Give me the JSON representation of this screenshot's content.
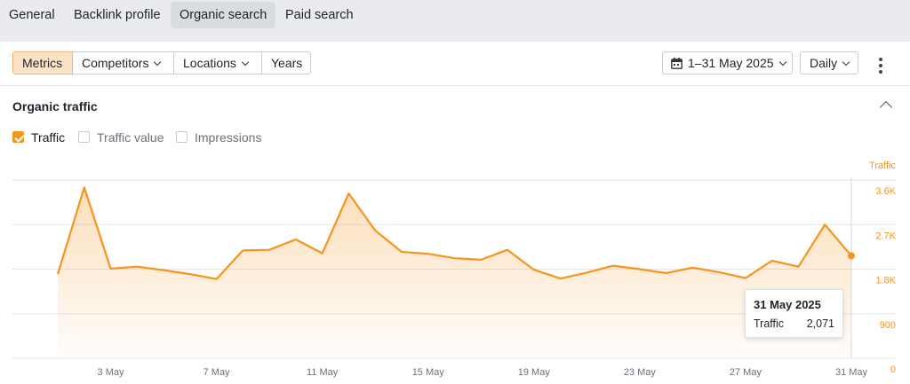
{
  "tabs": [
    {
      "label": "General",
      "active": false
    },
    {
      "label": "Backlink profile",
      "active": false
    },
    {
      "label": "Organic search",
      "active": true
    },
    {
      "label": "Paid search",
      "active": false
    }
  ],
  "toolbar": {
    "segments": [
      {
        "label": "Metrics",
        "active": true,
        "dropdown": false
      },
      {
        "label": "Competitors",
        "active": false,
        "dropdown": true
      },
      {
        "label": "Locations",
        "active": false,
        "dropdown": true
      },
      {
        "label": "Years",
        "active": false,
        "dropdown": false
      }
    ],
    "date_range": "1–31 May 2025",
    "granularity": "Daily",
    "icons": {
      "date": "calendar-icon",
      "more": "more-vertical-icon"
    }
  },
  "section": {
    "title": "Organic traffic",
    "checkboxes": [
      {
        "label": "Traffic",
        "checked": true
      },
      {
        "label": "Traffic value",
        "checked": false
      },
      {
        "label": "Impressions",
        "checked": false
      }
    ]
  },
  "tooltip": {
    "date": "31 May 2025",
    "label": "Traffic",
    "value": "2,071"
  },
  "colors": {
    "accent": "#f7941d",
    "active_tab_bg": "#d9dce1",
    "active_button_bg": "#fde3c6"
  },
  "chart_data": {
    "type": "area",
    "axis_title": "Traffic",
    "x": [
      "1 May",
      "2 May",
      "3 May",
      "4 May",
      "5 May",
      "6 May",
      "7 May",
      "8 May",
      "9 May",
      "10 May",
      "11 May",
      "12 May",
      "13 May",
      "14 May",
      "15 May",
      "16 May",
      "17 May",
      "18 May",
      "19 May",
      "20 May",
      "21 May",
      "22 May",
      "23 May",
      "24 May",
      "25 May",
      "26 May",
      "27 May",
      "28 May",
      "29 May",
      "30 May",
      "31 May"
    ],
    "values": [
      1700,
      3450,
      1810,
      1850,
      1780,
      1700,
      1600,
      2180,
      2190,
      2400,
      2120,
      3330,
      2580,
      2150,
      2110,
      2020,
      1990,
      2190,
      1790,
      1610,
      1730,
      1870,
      1800,
      1720,
      1830,
      1740,
      1620,
      1970,
      1850,
      2700,
      2071
    ],
    "x_tick_labels": [
      "3 May",
      "7 May",
      "11 May",
      "15 May",
      "19 May",
      "23 May",
      "27 May",
      "31 May"
    ],
    "x_tick_days": [
      3,
      7,
      11,
      15,
      19,
      23,
      27,
      31
    ],
    "y_ticks": [
      0,
      900,
      1800,
      2700,
      3600
    ],
    "y_tick_labels": [
      "0",
      "900",
      "1.8K",
      "2.7K",
      "3.6K"
    ],
    "ylim": [
      0,
      3600
    ],
    "y_axis_side": "right",
    "grid": true,
    "highlighted_point": 31
  }
}
